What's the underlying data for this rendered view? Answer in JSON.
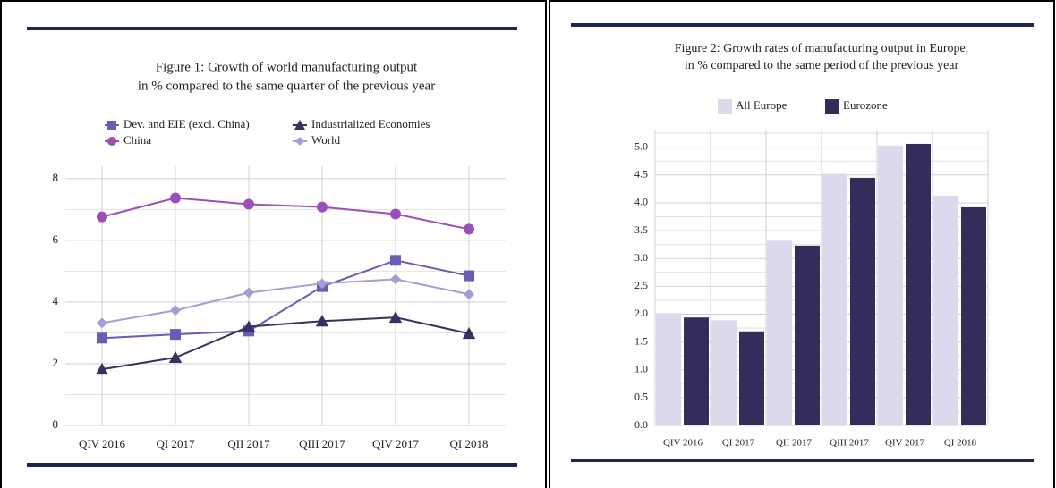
{
  "chart_data": [
    {
      "type": "line",
      "title": [
        "Figure 1: Growth of world manufacturing output",
        "in % compared to the same quarter of the previous year"
      ],
      "categories": [
        "QIV 2016",
        "QI 2017",
        "QII 2017",
        "QIII 2017",
        "QIV 2017",
        "QI 2018"
      ],
      "series": [
        {
          "name": "Dev. and EIE (excl. China)",
          "color": "#6b5bb5",
          "marker": "square",
          "values": [
            2.83,
            2.95,
            3.06,
            4.5,
            5.35,
            4.85
          ]
        },
        {
          "name": "Industrialized Economies",
          "color": "#3a2f5e",
          "marker": "triangle",
          "values": [
            1.82,
            2.2,
            3.2,
            3.38,
            3.5,
            2.98
          ]
        },
        {
          "name": "China",
          "color": "#9b4fb8",
          "marker": "circle",
          "values": [
            6.76,
            7.37,
            7.17,
            7.08,
            6.85,
            6.36
          ]
        },
        {
          "name": "World",
          "color": "#a99bd6",
          "marker": "diamond",
          "values": [
            3.32,
            3.73,
            4.3,
            4.6,
            4.74,
            4.25
          ]
        }
      ],
      "ylim": [
        0,
        8.4
      ],
      "yticks": [
        0,
        2,
        4,
        6,
        8
      ],
      "minor_yticks": [
        1,
        3,
        5,
        7
      ],
      "grid": true
    },
    {
      "type": "bar",
      "title": [
        "Figure 2: Growth rates of manufacturing output in Europe,",
        "in % compared to the same period of the previous year"
      ],
      "categories": [
        "QIV 2016",
        "QI 2017",
        "QII 2017",
        "QIII 2017",
        "QIV 2017",
        "QI 2018"
      ],
      "series": [
        {
          "name": "All Europe",
          "color": "#dcd9ec",
          "values": [
            2.02,
            1.89,
            3.32,
            4.52,
            5.03,
            4.13
          ]
        },
        {
          "name": "Eurozone",
          "color": "#342c5a",
          "values": [
            1.94,
            1.69,
            3.23,
            4.45,
            5.06,
            3.92
          ]
        }
      ],
      "ylim": [
        0,
        5.3
      ],
      "yticks": [
        {
          "value": 0,
          "label": "0.0"
        },
        0.5,
        {
          "value": 1,
          "label": "1.0"
        },
        1.5,
        {
          "value": 2,
          "label": "2.0"
        },
        2.5,
        {
          "value": 3,
          "label": "3.0"
        },
        3.5,
        {
          "value": 4,
          "label": "4.0"
        },
        4.5,
        {
          "value": 5,
          "label": "5.0"
        }
      ],
      "minor_yticks": [
        0.25,
        0.75,
        1.25,
        1.75,
        2.25,
        2.75,
        3.25,
        3.75,
        4.25,
        4.75,
        5.25
      ],
      "grid": true
    }
  ]
}
